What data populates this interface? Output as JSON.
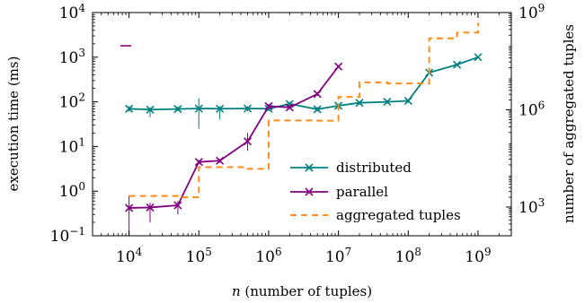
{
  "chart_data": {
    "type": "line",
    "xlabel": "n (number of tuples)",
    "xlabel_italic": "n",
    "xlabel_rest": " (number of tuples)",
    "ylabel_left": "execution time (ms)",
    "ylabel_right": "number of aggregated tuples",
    "x_scale": "log",
    "y_left_scale": "log",
    "y_right_scale": "log",
    "xlim": [
      3000,
      3000000000
    ],
    "ylim_left": [
      0.1,
      10000
    ],
    "ylim_right": [
      130,
      1000000000
    ],
    "x_ticks": [
      {
        "value": 10000,
        "base": "10",
        "exp": "4"
      },
      {
        "value": 100000,
        "base": "10",
        "exp": "5"
      },
      {
        "value": 1000000,
        "base": "10",
        "exp": "6"
      },
      {
        "value": 10000000,
        "base": "10",
        "exp": "7"
      },
      {
        "value": 100000000,
        "base": "10",
        "exp": "8"
      },
      {
        "value": 1000000000,
        "base": "10",
        "exp": "9"
      }
    ],
    "y_left_ticks": [
      {
        "value": 0.1,
        "base": "10",
        "exp": "−1"
      },
      {
        "value": 1,
        "base": "10",
        "exp": "0"
      },
      {
        "value": 10,
        "base": "10",
        "exp": "1"
      },
      {
        "value": 100,
        "base": "10",
        "exp": "2"
      },
      {
        "value": 1000,
        "base": "10",
        "exp": "3"
      },
      {
        "value": 10000,
        "base": "10",
        "exp": "4"
      }
    ],
    "y_right_ticks": [
      {
        "value": 1000,
        "base": "10",
        "exp": "3"
      },
      {
        "value": 1000000,
        "base": "10",
        "exp": "6"
      },
      {
        "value": 1000000000,
        "base": "10",
        "exp": "9"
      }
    ],
    "legend_position": "bottom-right",
    "series": [
      {
        "name": "distributed",
        "axis": "left",
        "color": "#008080",
        "marker": "x",
        "dash": "solid",
        "points": [
          {
            "x": 10000,
            "y": 70,
            "lo": 60,
            "hi": 80
          },
          {
            "x": 20000,
            "y": 67,
            "lo": 45,
            "hi": 75
          },
          {
            "x": 50000,
            "y": 69,
            "lo": 62,
            "hi": 78
          },
          {
            "x": 100000,
            "y": 71,
            "lo": 25,
            "hi": 120
          },
          {
            "x": 200000,
            "y": 70,
            "lo": 40,
            "hi": 80
          },
          {
            "x": 500000,
            "y": 71,
            "lo": 62,
            "hi": 80
          },
          {
            "x": 1000000,
            "y": 70,
            "lo": 62,
            "hi": 80
          },
          {
            "x": 2000000,
            "y": 90,
            "lo": 80,
            "hi": 100
          },
          {
            "x": 5000000,
            "y": 68,
            "lo": 60,
            "hi": 78
          },
          {
            "x": 10000000,
            "y": 82,
            "lo": 72,
            "hi": 92
          },
          {
            "x": 20000000,
            "y": 95,
            "lo": 85,
            "hi": 105
          },
          {
            "x": 50000000,
            "y": 100,
            "lo": 90,
            "hi": 110
          },
          {
            "x": 100000000,
            "y": 105,
            "lo": 95,
            "hi": 115
          },
          {
            "x": 200000000,
            "y": 450,
            "lo": 420,
            "hi": 480
          },
          {
            "x": 500000000,
            "y": 680,
            "lo": 640,
            "hi": 720
          },
          {
            "x": 1000000000,
            "y": 1000,
            "lo": 950,
            "hi": 1050
          }
        ]
      },
      {
        "name": "parallel",
        "axis": "left",
        "color": "#800080",
        "marker": "x",
        "dash": "solid",
        "points": [
          {
            "x": 10000,
            "y": 0.42,
            "lo": 0.1,
            "hi": 0.8
          },
          {
            "x": 20000,
            "y": 0.43,
            "lo": 0.2,
            "hi": 0.55
          },
          {
            "x": 50000,
            "y": 0.48,
            "lo": 0.3,
            "hi": 0.6
          },
          {
            "x": 100000,
            "y": 4.5,
            "lo": 4,
            "hi": 5
          },
          {
            "x": 200000,
            "y": 4.8,
            "lo": 4.3,
            "hi": 5.3
          },
          {
            "x": 500000,
            "y": 13,
            "lo": 8,
            "hi": 20
          },
          {
            "x": 1000000,
            "y": 80,
            "lo": 70,
            "hi": 90
          },
          {
            "x": 2000000,
            "y": 75,
            "lo": 68,
            "hi": 82
          },
          {
            "x": 5000000,
            "y": 150,
            "lo": 135,
            "hi": 165
          },
          {
            "x": 10000000,
            "y": 620,
            "lo": 590,
            "hi": 650
          }
        ]
      },
      {
        "name": "aggregated tuples",
        "axis": "right",
        "color": "#ff8c1a",
        "marker": "none",
        "dash": "dashed",
        "step": true,
        "points": [
          {
            "x": 10000,
            "y": 2200
          },
          {
            "x": 20000,
            "y": 2200
          },
          {
            "x": 50000,
            "y": 2000
          },
          {
            "x": 100000,
            "y": 17000
          },
          {
            "x": 200000,
            "y": 17000
          },
          {
            "x": 500000,
            "y": 15000
          },
          {
            "x": 1000000,
            "y": 470000
          },
          {
            "x": 2000000,
            "y": 470000
          },
          {
            "x": 5000000,
            "y": 460000
          },
          {
            "x": 10000000,
            "y": 2500000
          },
          {
            "x": 20000000,
            "y": 7000000
          },
          {
            "x": 50000000,
            "y": 6500000
          },
          {
            "x": 100000000,
            "y": 6500000
          },
          {
            "x": 200000000,
            "y": 160000000
          },
          {
            "x": 500000000,
            "y": 240000000
          },
          {
            "x": 1000000000,
            "y": 480000000
          }
        ]
      }
    ],
    "stray_marks": [
      {
        "x": 9000,
        "y": 1800,
        "axis": "left",
        "color": "#800080"
      }
    ]
  }
}
